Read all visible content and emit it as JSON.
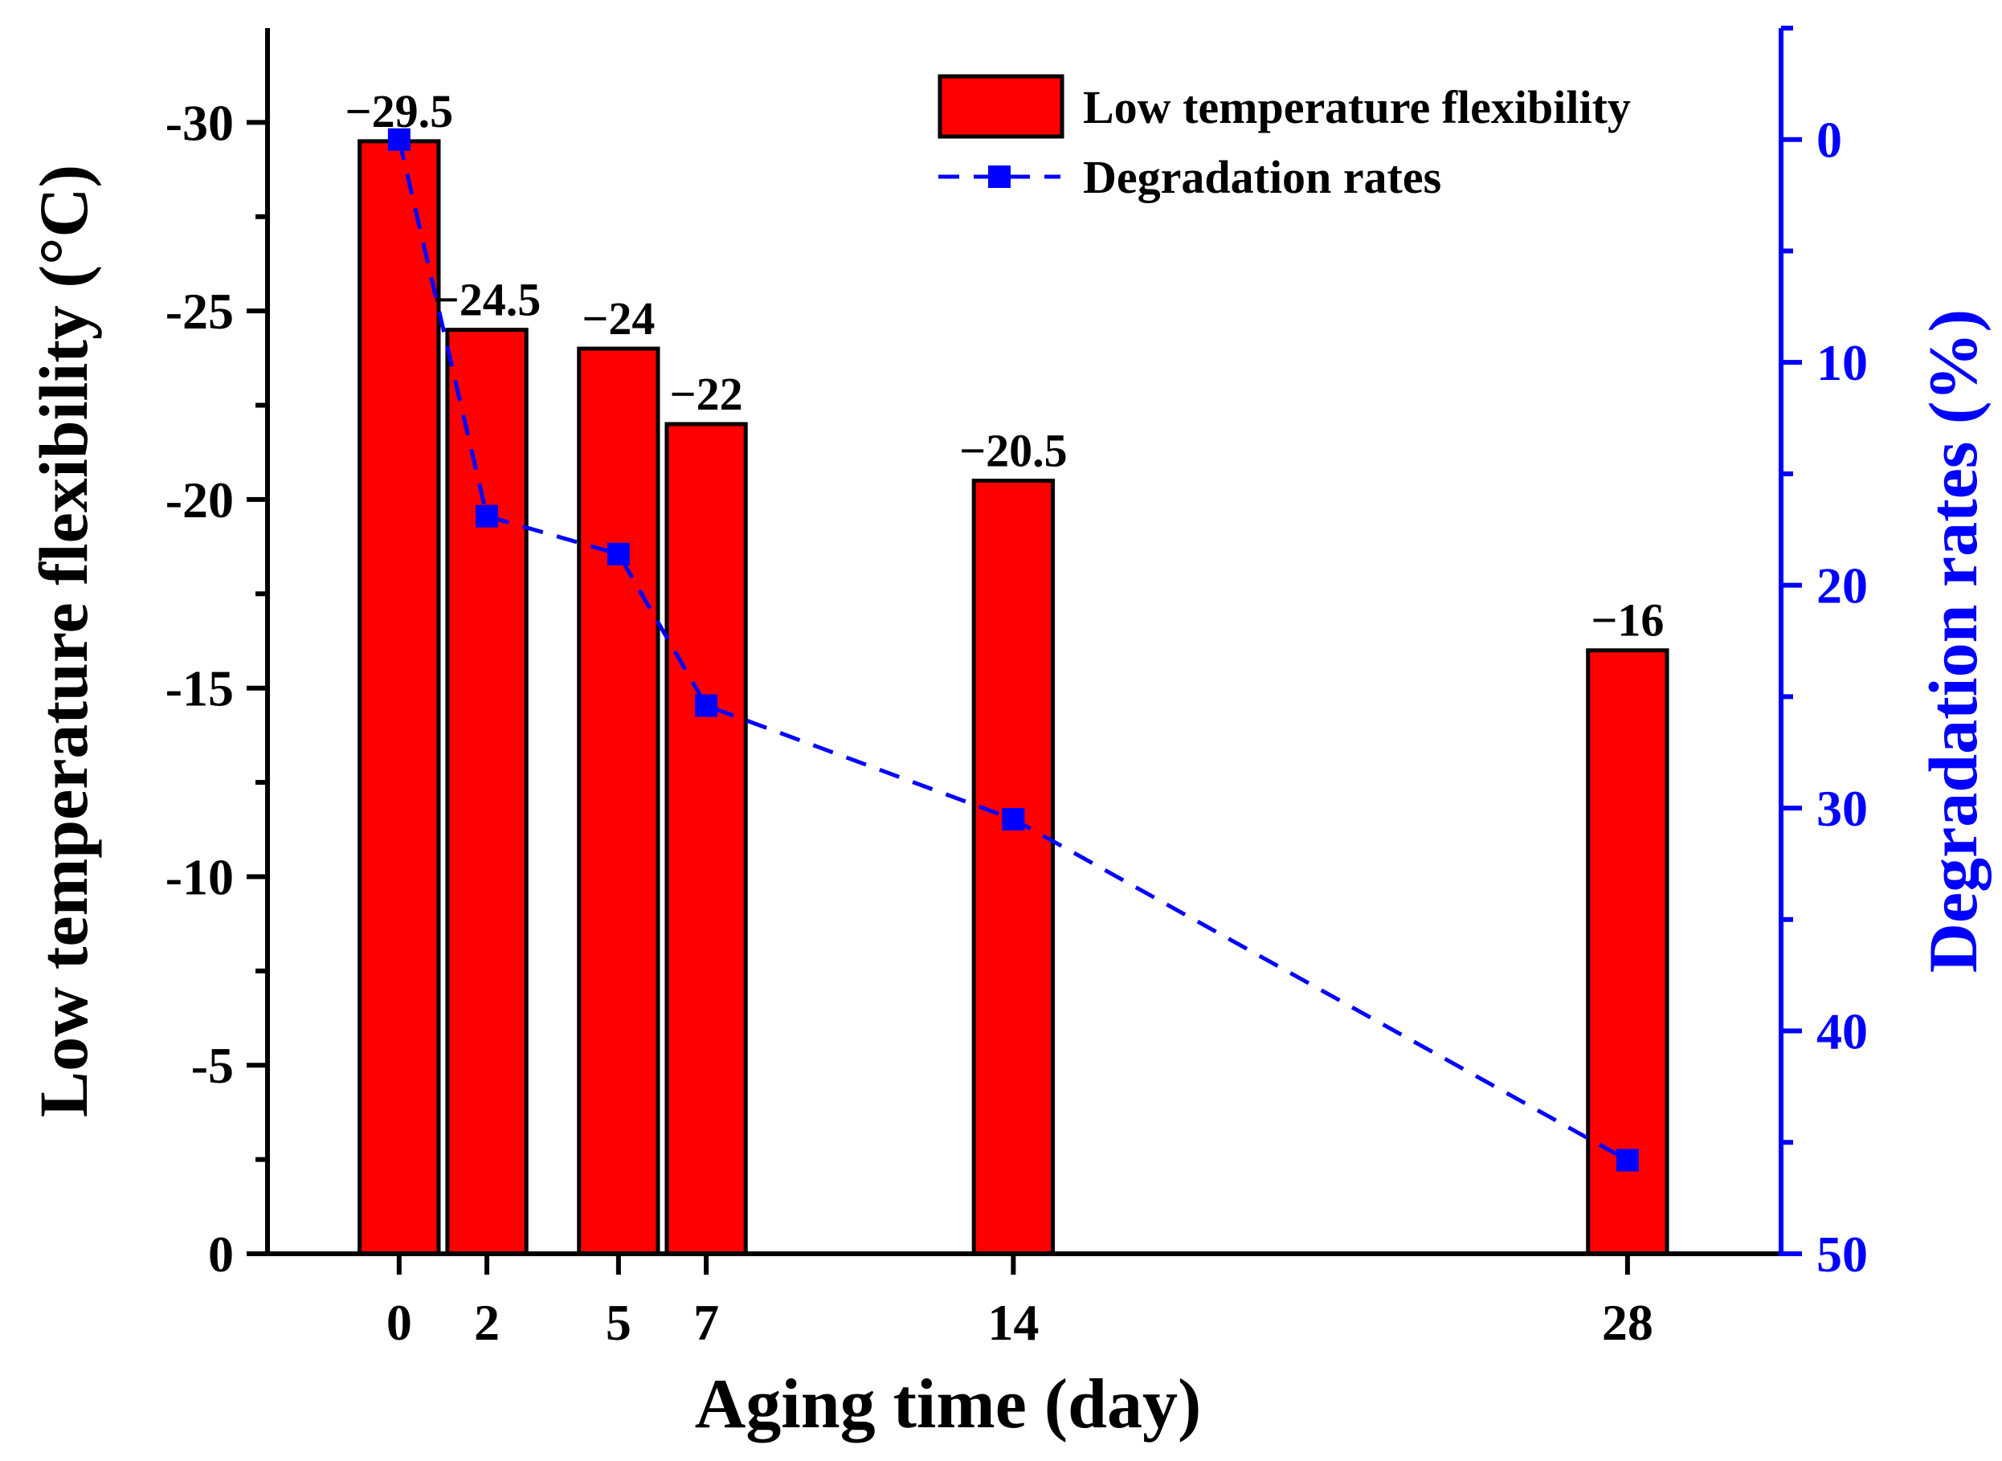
{
  "chart_data": {
    "type": "bar+line",
    "xlabel": "Aging time (day)",
    "ylabel_left": "Low temperature flexibility (°C)",
    "ylabel_right": "Degradation rates (%)",
    "x": [
      0,
      2,
      5,
      7,
      14,
      28
    ],
    "x_tick_labels": [
      "0",
      "2",
      "5",
      "7",
      "14",
      "28"
    ],
    "xlim": [
      -3,
      31.5
    ],
    "ylim_left": [
      0,
      -32.5
    ],
    "ylim_right": [
      50,
      -5
    ],
    "yticks_left": [
      0,
      -5,
      -10,
      -15,
      -20,
      -25,
      -30
    ],
    "ytick_labels_left": [
      "0",
      "-5",
      "-10",
      "-15",
      "-20",
      "-25",
      "-30"
    ],
    "yticks_right": [
      0,
      10,
      20,
      30,
      40,
      50
    ],
    "ytick_labels_right": [
      "0",
      "10",
      "20",
      "30",
      "40",
      "50"
    ],
    "bar_width_days": 1.8,
    "series": [
      {
        "name": "Low temperature flexibility",
        "kind": "bar",
        "axis": "left",
        "color": "#ff0000",
        "values": [
          -29.5,
          -24.5,
          -24,
          -22,
          -20.5,
          -16
        ],
        "data_labels": [
          "−29.5",
          "−24.5",
          "−24",
          "−22",
          "−20.5",
          "−16"
        ]
      },
      {
        "name": "Degradation rates",
        "kind": "line",
        "axis": "right",
        "color": "#0000ff",
        "marker": "square",
        "linestyle": "dashed",
        "values": [
          0,
          16.9,
          18.6,
          25.4,
          30.5,
          45.8
        ]
      }
    ],
    "legend": {
      "position": "top-right",
      "entries": [
        "Low temperature flexibility",
        "Degradation rates"
      ]
    }
  }
}
